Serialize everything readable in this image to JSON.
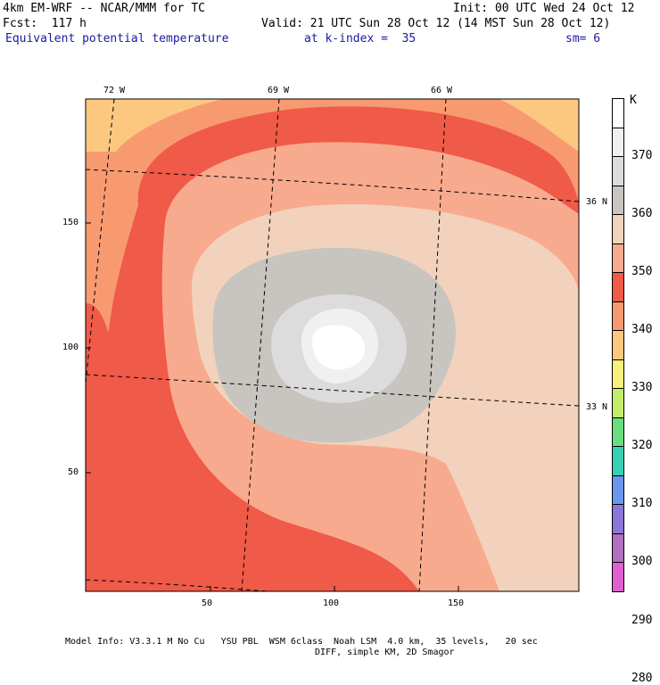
{
  "header": {
    "line1_left": "4km EM-WRF -- NCAR/MMM for TC",
    "line1_right": "Init: 00 UTC Wed 24 Oct 12",
    "line2_left": "Fcst:  117 h",
    "line2_right": "Valid: 21 UTC Sun 28 Oct 12 (14 MST Sun 28 Oct 12)",
    "field_name": "Equivalent potential temperature",
    "level": "at k-index =  35",
    "smoothing": "sm= 6"
  },
  "axes": {
    "lon_labels": [
      "72 W",
      "69 W",
      "66 W"
    ],
    "lat_labels": [
      "36 N",
      "33 N"
    ],
    "x_ticks": [
      "50",
      "100",
      "150"
    ],
    "y_ticks": [
      "150",
      "100",
      "50"
    ]
  },
  "colorbar": {
    "unit": "K",
    "levels": [
      "370",
      "360",
      "350",
      "340",
      "330",
      "320",
      "310",
      "300",
      "290",
      "280"
    ],
    "colors": [
      "#ffffff",
      "#f0f0f0",
      "#dcdcdc",
      "#c8c4c0",
      "#f2d2bc",
      "#f8aa8e",
      "#f05a48",
      "#f89a70",
      "#fcc880",
      "#f8f07a",
      "#c4ec6a",
      "#6cdc80",
      "#38d0b4",
      "#6c96ec",
      "#8c76d8",
      "#b070c0",
      "#e060d0"
    ]
  },
  "footer": {
    "line1": "Model Info: V3.3.1 M No Cu   YSU PBL  WSM 6class  Noah LSM  4.0 km,  35 levels,   20 sec",
    "line2": "DIFF, simple KM, 2D Smagor"
  },
  "colors": {
    "outer_orange": "#f89a70",
    "red_band": "#f05a48",
    "salmon": "#f8aa8e",
    "peach": "#f2d2bc",
    "gray": "#c8c4c0",
    "light_gray": "#dcdcdc",
    "eye_white": "#ffffff",
    "corner_yellow": "#fcc880",
    "header_blue": "#1a1aa0"
  }
}
